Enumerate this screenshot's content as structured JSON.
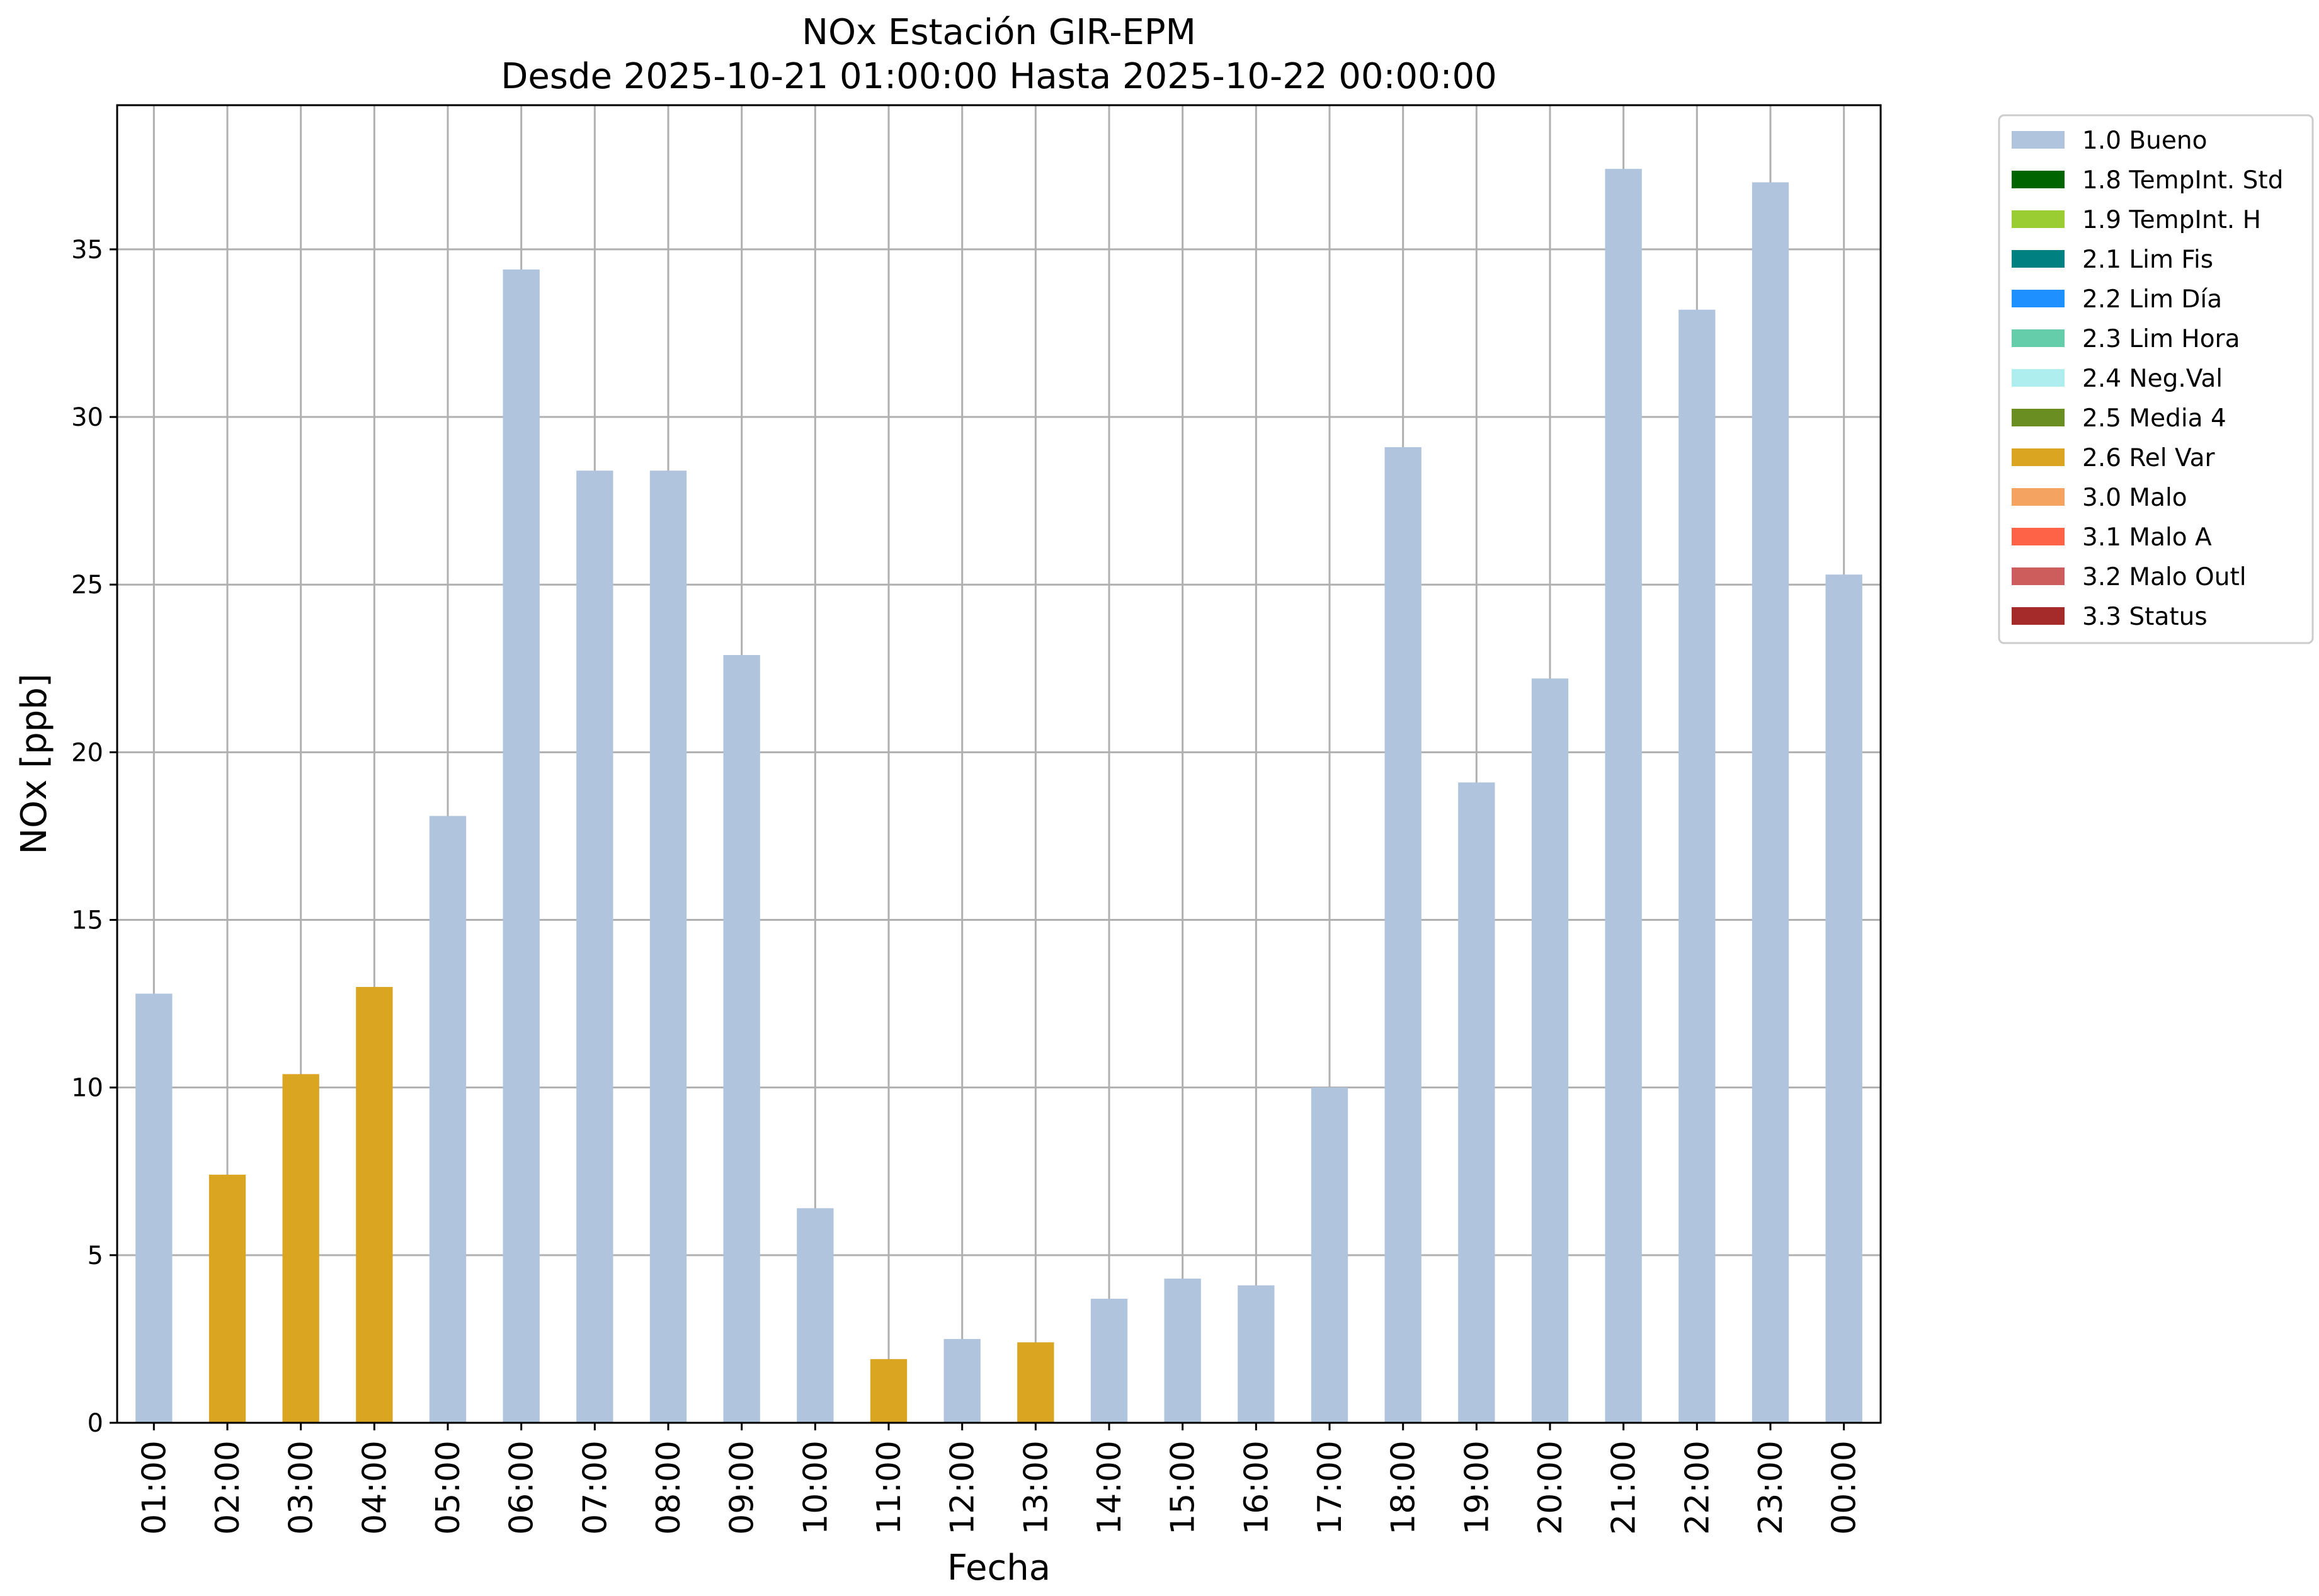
{
  "chart_data": {
    "type": "bar",
    "title": "NOx Estación GIR-EPM",
    "subtitle": "Desde 2025-10-21 01:00:00 Hasta 2025-10-22 00:00:00",
    "xlabel": "Fecha",
    "ylabel": "NOx [ppb]",
    "ylim": [
      0,
      39.3
    ],
    "yticks": [
      0,
      5,
      10,
      15,
      20,
      25,
      30,
      35
    ],
    "grid": true,
    "legend_position": "outside-right-top",
    "categories": [
      "01:00",
      "02:00",
      "03:00",
      "04:00",
      "05:00",
      "06:00",
      "07:00",
      "08:00",
      "09:00",
      "10:00",
      "11:00",
      "12:00",
      "13:00",
      "14:00",
      "15:00",
      "16:00",
      "17:00",
      "18:00",
      "19:00",
      "20:00",
      "21:00",
      "22:00",
      "23:00",
      "00:00"
    ],
    "values": [
      12.8,
      7.4,
      10.4,
      13.0,
      18.1,
      34.4,
      28.4,
      28.4,
      22.9,
      6.4,
      1.9,
      2.5,
      2.4,
      3.7,
      4.3,
      4.1,
      10.0,
      29.1,
      19.1,
      22.2,
      37.4,
      33.2,
      37.0,
      25.3
    ],
    "flags": [
      "1.0",
      "2.6",
      "2.6",
      "2.6",
      "1.0",
      "1.0",
      "1.0",
      "1.0",
      "1.0",
      "1.0",
      "2.6",
      "1.0",
      "2.6",
      "1.0",
      "1.0",
      "1.0",
      "1.0",
      "1.0",
      "1.0",
      "1.0",
      "1.0",
      "1.0",
      "1.0",
      "1.0"
    ],
    "legend": [
      {
        "code": "1.0",
        "label": "1.0 Bueno",
        "color": "#b0c4de"
      },
      {
        "code": "1.8",
        "label": "1.8 TempInt. Std",
        "color": "#006400"
      },
      {
        "code": "1.9",
        "label": "1.9 TempInt. H",
        "color": "#9acd32"
      },
      {
        "code": "2.1",
        "label": "2.1 Lim Fis",
        "color": "#008080"
      },
      {
        "code": "2.2",
        "label": "2.2 Lim Día",
        "color": "#1e90ff"
      },
      {
        "code": "2.3",
        "label": "2.3 Lim Hora",
        "color": "#66cdaa"
      },
      {
        "code": "2.4",
        "label": "2.4 Neg.Val",
        "color": "#afeeee"
      },
      {
        "code": "2.5",
        "label": "2.5 Media 4",
        "color": "#6b8e23"
      },
      {
        "code": "2.6",
        "label": "2.6 Rel Var",
        "color": "#daa520"
      },
      {
        "code": "3.0",
        "label": "3.0 Malo",
        "color": "#f4a460"
      },
      {
        "code": "3.1",
        "label": "3.1 Malo A",
        "color": "#ff6347"
      },
      {
        "code": "3.2",
        "label": "3.2 Malo Outl",
        "color": "#cd5c5c"
      },
      {
        "code": "3.3",
        "label": "3.3 Status",
        "color": "#a52a2a"
      }
    ]
  }
}
